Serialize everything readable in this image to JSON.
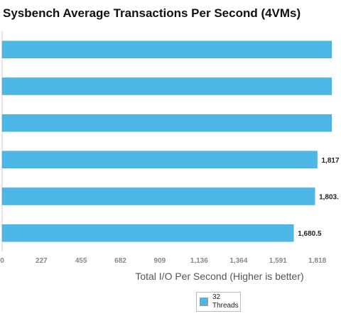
{
  "chart_data": {
    "type": "bar",
    "orientation": "horizontal",
    "title": "Sysbench Average Transactions Per Second (4VMs)",
    "xlabel": "Total I/O Per Second (Higher is better)",
    "ylabel": "",
    "xlim": [
      0,
      1900
    ],
    "x_ticks": [
      "0",
      "227",
      "455",
      "682",
      "909",
      "1,136",
      "1,364",
      "1,591",
      "1,818"
    ],
    "x_tick_values": [
      0,
      227,
      455,
      682,
      909,
      1136,
      1364,
      1591,
      1818
    ],
    "grid": false,
    "legend_position": "bottom",
    "series": [
      {
        "name": "32 Threads",
        "color": "#4db8e8",
        "values": [
          1900,
          1900,
          1900,
          1817,
          1803,
          1680.5
        ],
        "labels": [
          "",
          "",
          "",
          "1,817",
          "1,803.",
          "1,680.5"
        ]
      }
    ]
  }
}
